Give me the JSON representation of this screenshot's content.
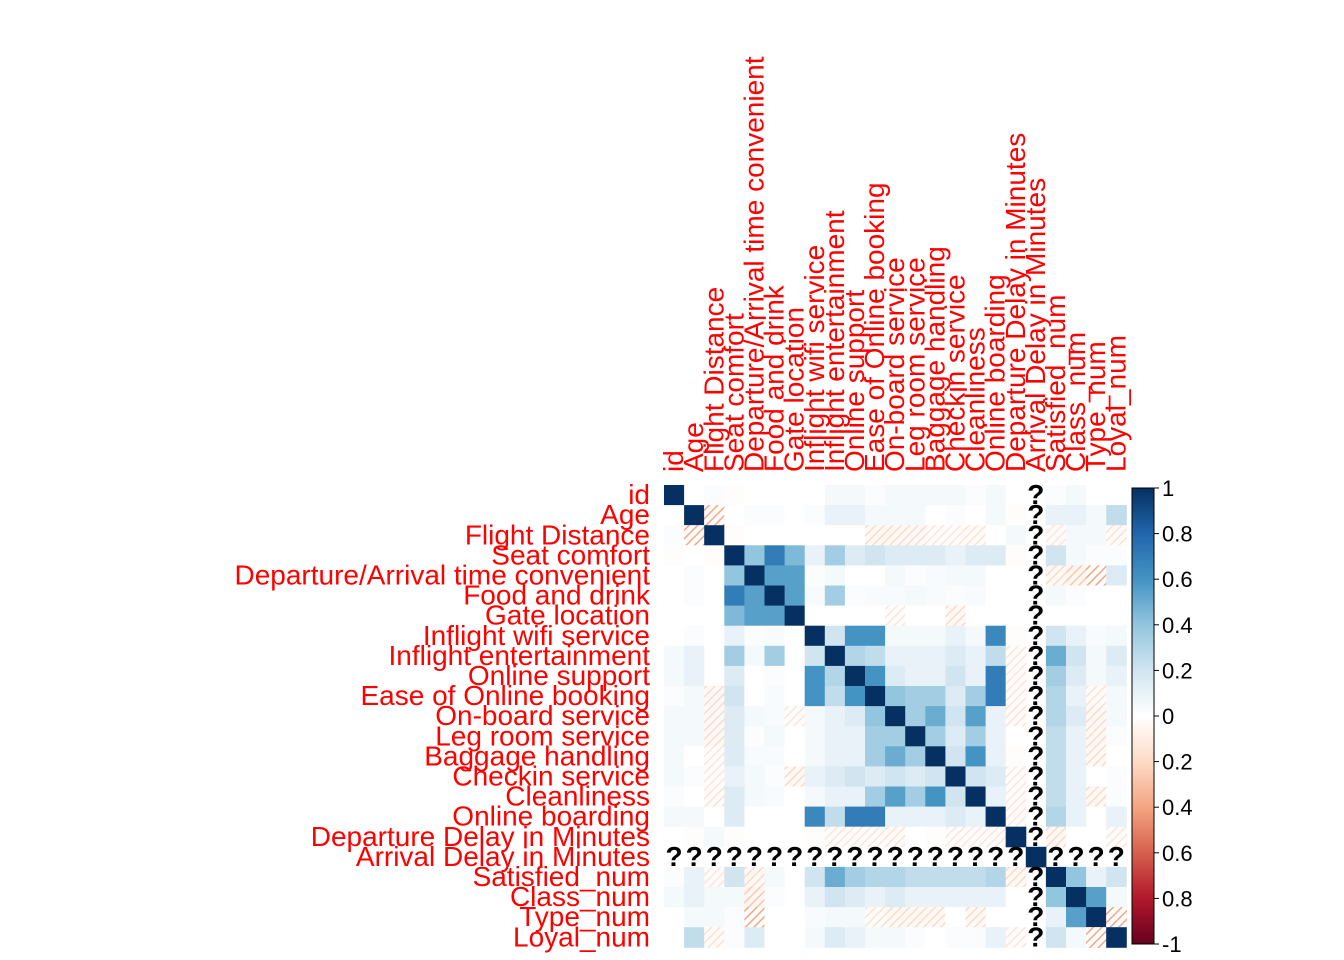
{
  "chart_data": {
    "type": "heatmap",
    "variables": [
      "id",
      "Age",
      "Flight Distance",
      "Seat comfort",
      "Departure/Arrival time convenient",
      "Food and drink",
      "Gate location",
      "Inflight wifi service",
      "Inflight entertainment",
      "Online support",
      "Ease of Online booking",
      "On-board service",
      "Leg room service",
      "Baggage handling",
      "Checkin service",
      "Cleanliness",
      "Online boarding",
      "Departure Delay in Minutes",
      "Arrival Delay in Minutes",
      "Satisfied_num",
      "Class_num",
      "Type_num",
      "Loyal_num"
    ],
    "missing_index": 18,
    "missing_symbol": "?",
    "colorbar": {
      "range": [
        -1,
        1
      ],
      "ticks": [
        "1",
        "0.8",
        "0.6",
        "0.4",
        "0.2",
        "0",
        "0.2",
        "0.4",
        "0.6",
        "0.8",
        "-1"
      ],
      "colors": [
        "#67001f",
        "#b2182b",
        "#d6604d",
        "#f4a582",
        "#fddbc7",
        "#ffffff",
        "#d1e5f0",
        "#92c5de",
        "#4393c3",
        "#2166ac",
        "#053061"
      ]
    },
    "matrix": [
      [
        1,
        0,
        0.02,
        -0.01,
        0,
        0,
        0,
        0,
        0.05,
        0.05,
        0.02,
        0.05,
        0.05,
        0.05,
        0.05,
        0.02,
        0.05,
        0,
        null,
        0.02,
        0.05,
        0,
        0
      ],
      [
        0,
        1,
        -0.25,
        0,
        0.02,
        0.02,
        0,
        0.02,
        0.1,
        0.1,
        0.05,
        0.05,
        0.05,
        0,
        0.02,
        0,
        0.05,
        -0.01,
        null,
        0.1,
        0.1,
        0.05,
        0.25
      ],
      [
        0.02,
        -0.25,
        1,
        -0.01,
        0,
        0,
        0,
        0,
        0,
        0,
        -0.05,
        -0.05,
        -0.05,
        -0.02,
        -0.02,
        -0.03,
        0,
        0.05,
        null,
        -0.02,
        0.05,
        0.05,
        -0.03
      ],
      [
        -0.01,
        0,
        -0.01,
        1,
        0.4,
        0.7,
        0.45,
        0.1,
        0.35,
        0.15,
        0.2,
        0.15,
        0.15,
        0.15,
        0.1,
        0.15,
        0.15,
        -0.01,
        null,
        0.2,
        0.05,
        0.02,
        0.02
      ],
      [
        0,
        0.02,
        0,
        0.4,
        1,
        0.55,
        0.55,
        0.02,
        0.05,
        0,
        0,
        0.05,
        0.02,
        0.03,
        0.05,
        0.05,
        0,
        0,
        null,
        -0.05,
        -0.1,
        -0.3,
        0.15
      ],
      [
        0,
        0.02,
        0,
        0.7,
        0.55,
        1,
        0.55,
        0.03,
        0.35,
        0.02,
        0.03,
        0.03,
        0.05,
        0.03,
        0.02,
        0.03,
        0,
        0,
        null,
        0.05,
        0.02,
        0,
        0
      ],
      [
        0,
        0,
        0,
        0.45,
        0.55,
        0.55,
        1,
        0,
        0,
        0,
        0,
        -0.02,
        0,
        0,
        -0.05,
        0,
        0,
        0,
        null,
        0,
        0,
        0,
        0
      ],
      [
        0,
        0.02,
        0,
        0.1,
        0.02,
        0.03,
        0,
        1,
        0.2,
        0.6,
        0.6,
        0.05,
        0.05,
        0.05,
        0.1,
        0.05,
        0.65,
        -0.01,
        null,
        0.2,
        0.1,
        0.03,
        0.05
      ],
      [
        0.05,
        0.1,
        0,
        0.35,
        0.05,
        0.35,
        0,
        0.2,
        1,
        0.3,
        0.25,
        0.1,
        0.1,
        0.1,
        0.15,
        0.1,
        0.25,
        -0.02,
        null,
        0.5,
        0.2,
        0.05,
        0.15
      ],
      [
        0.05,
        0.1,
        0,
        0.15,
        0,
        0.02,
        0,
        0.6,
        0.3,
        1,
        0.6,
        0.15,
        0.1,
        0.1,
        0.2,
        0.1,
        0.7,
        -0.02,
        null,
        0.35,
        0.15,
        0.05,
        0.1
      ],
      [
        0.02,
        0.05,
        -0.05,
        0.2,
        0,
        0.03,
        0,
        0.6,
        0.25,
        0.6,
        1,
        0.4,
        0.35,
        0.35,
        0.15,
        0.35,
        0.7,
        -0.02,
        null,
        0.3,
        0.1,
        -0.03,
        0.05
      ],
      [
        0.05,
        0.05,
        -0.05,
        0.15,
        0.05,
        0.03,
        -0.02,
        0.05,
        0.1,
        0.15,
        0.4,
        1,
        0.35,
        0.5,
        0.2,
        0.55,
        0.1,
        -0.03,
        null,
        0.3,
        0.15,
        -0.05,
        0.05
      ],
      [
        0.05,
        0.05,
        -0.05,
        0.15,
        0.02,
        0.05,
        0,
        0.05,
        0.1,
        0.1,
        0.35,
        0.35,
        1,
        0.35,
        0.15,
        0.35,
        0.1,
        0,
        null,
        0.25,
        0.1,
        -0.05,
        0.02
      ],
      [
        0.05,
        0,
        -0.02,
        0.15,
        0.03,
        0.03,
        0,
        0.05,
        0.1,
        0.1,
        0.35,
        0.5,
        0.35,
        1,
        0.2,
        0.6,
        0.1,
        -0.01,
        null,
        0.25,
        0.1,
        -0.05,
        0
      ],
      [
        0.05,
        0.02,
        -0.02,
        0.1,
        0.05,
        0.02,
        -0.05,
        0.1,
        0.15,
        0.2,
        0.15,
        0.2,
        0.15,
        0.2,
        1,
        0.2,
        0.15,
        -0.02,
        null,
        0.25,
        0.1,
        0,
        0.02
      ],
      [
        0.02,
        0,
        -0.03,
        0.15,
        0.05,
        0.03,
        0,
        0.05,
        0.1,
        0.1,
        0.35,
        0.55,
        0.35,
        0.6,
        0.2,
        1,
        0.1,
        -0.02,
        null,
        0.25,
        0.1,
        -0.05,
        0.02
      ],
      [
        0.05,
        0.05,
        0,
        0.15,
        0,
        0,
        0,
        0.65,
        0.25,
        0.7,
        0.7,
        0.1,
        0.1,
        0.1,
        0.15,
        0.1,
        1,
        -0.02,
        null,
        0.3,
        0.1,
        0,
        0.1
      ],
      [
        0,
        -0.01,
        0.05,
        -0.01,
        0,
        0,
        0,
        -0.01,
        -0.02,
        -0.02,
        -0.02,
        -0.03,
        0,
        -0.01,
        -0.02,
        -0.02,
        -0.02,
        1,
        null,
        -0.05,
        0,
        0,
        -0.02
      ],
      [
        null,
        null,
        null,
        null,
        null,
        null,
        null,
        null,
        null,
        null,
        null,
        null,
        null,
        null,
        null,
        null,
        null,
        null,
        1,
        null,
        null,
        null,
        null
      ],
      [
        0.02,
        0.1,
        -0.02,
        0.2,
        -0.05,
        0.05,
        0,
        0.2,
        0.5,
        0.35,
        0.3,
        0.3,
        0.25,
        0.25,
        0.25,
        0.25,
        0.3,
        -0.05,
        null,
        1,
        0.4,
        0.1,
        0.2
      ],
      [
        0.05,
        0.1,
        0.05,
        0.05,
        -0.1,
        0.02,
        0,
        0.1,
        0.2,
        0.15,
        0.1,
        0.15,
        0.1,
        0.1,
        0.1,
        0.1,
        0.1,
        0,
        null,
        0.4,
        1,
        0.55,
        0.05
      ],
      [
        0,
        0.05,
        0.05,
        0.02,
        -0.3,
        0,
        0,
        0.03,
        0.05,
        0.05,
        -0.03,
        -0.05,
        -0.05,
        -0.05,
        0,
        -0.05,
        0,
        0,
        null,
        0.1,
        0.55,
        1,
        -0.3
      ],
      [
        0,
        0.25,
        -0.03,
        0.02,
        0.15,
        0,
        0,
        0.05,
        0.15,
        0.1,
        0.05,
        0.05,
        0.02,
        0,
        0.02,
        0.02,
        0.1,
        -0.02,
        null,
        0.2,
        0.05,
        -0.3,
        1
      ]
    ]
  }
}
